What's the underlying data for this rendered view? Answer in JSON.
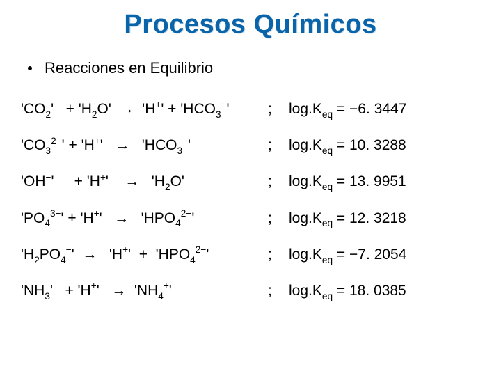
{
  "title": "Procesos Químicos",
  "title_color": "#0a64aa",
  "bullet": "Reacciones en Equilibrio",
  "background_color": "#ffffff",
  "text_color": "#000000",
  "fontsize_title": 38,
  "fontsize_bullet": 22,
  "fontsize_reaction": 21,
  "reactions": [
    {
      "lhs": "'CO2'   + 'H2O'  →  'H+' + 'HCO3-'",
      "sep": ";",
      "rhs": "log.Keq = -6. 3447"
    },
    {
      "lhs": "'CO32-' + 'H+'   →   'HCO3-'",
      "sep": ";",
      "rhs": "log.Keq = 10. 3288"
    },
    {
      "lhs": "'OH-'     + 'H+'    →   'H2O'",
      "sep": ";",
      "rhs": "log.Keq = 13. 9951"
    },
    {
      "lhs": "'PO43-' + 'H+'   →   'HPO42-'",
      "sep": ";",
      "rhs": "log.Keq = 12. 3218"
    },
    {
      "lhs": "'H2PO4-'  →   'H+'  +  'HPO42-'",
      "sep": ";",
      "rhs": "log.Keq = -7. 2054"
    },
    {
      "lhs": "'NH3'   + 'H+'   →  'NH4+'",
      "sep": ";",
      "rhs": "log.Keq = 18. 0385"
    }
  ]
}
